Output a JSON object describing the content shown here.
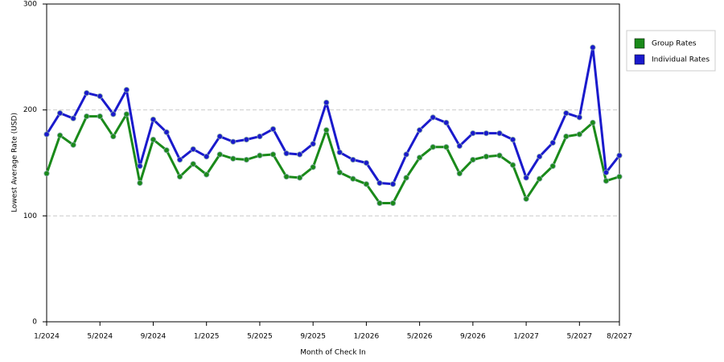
{
  "chart_data": {
    "type": "line",
    "x_label": "Month of Check In",
    "y_label": "Lowest Average Rate (USD)",
    "categories": [
      "1/2024",
      null,
      null,
      null,
      "5/2024",
      null,
      null,
      null,
      "9/2024",
      null,
      null,
      null,
      "1/2025",
      null,
      null,
      null,
      "5/2025",
      null,
      null,
      null,
      "9/2025",
      null,
      null,
      null,
      "1/2026",
      null,
      null,
      null,
      "5/2026",
      null,
      null,
      null,
      "9/2026",
      null,
      null,
      null,
      "1/2027",
      null,
      null,
      null,
      "5/2027",
      null,
      null,
      "8/2027"
    ],
    "series": [
      {
        "name": "Group Rates",
        "color": "#1a8a1a",
        "values": [
          140,
          176,
          167,
          194,
          194,
          175,
          196,
          131,
          172,
          162,
          137,
          149,
          139,
          158,
          154,
          153,
          157,
          158,
          137,
          136,
          146,
          181,
          141,
          135,
          130,
          112,
          112,
          136,
          155,
          165,
          165,
          140,
          153,
          156,
          157,
          148,
          116,
          135,
          147,
          175,
          177,
          188,
          133,
          137
        ]
      },
      {
        "name": "Individual Rates",
        "color": "#1a1acc",
        "values": [
          177,
          197,
          192,
          216,
          213,
          196,
          219,
          147,
          191,
          179,
          153,
          163,
          156,
          175,
          170,
          172,
          175,
          182,
          159,
          158,
          168,
          207,
          160,
          153,
          150,
          131,
          130,
          158,
          181,
          193,
          188,
          166,
          178,
          178,
          178,
          172,
          136,
          156,
          169,
          197,
          193,
          259,
          141,
          157
        ]
      }
    ],
    "ylim": [
      0,
      300
    ],
    "yticks": [
      0,
      100,
      200,
      300
    ],
    "grid": true,
    "legend": "right"
  }
}
